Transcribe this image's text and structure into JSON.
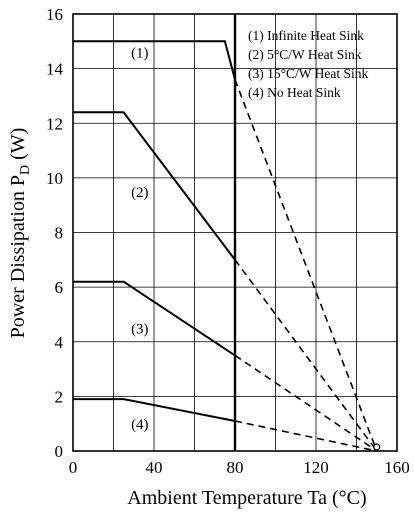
{
  "chart_data": {
    "type": "line",
    "title": "",
    "xlabel": "Ambient Temperature  Ta (°C)",
    "ylabel_main": "Power Dissipation  P",
    "ylabel_sub": "D",
    "ylabel_unit": " (W)",
    "xlim": [
      0,
      160
    ],
    "ylim": [
      0,
      16
    ],
    "x_ticks": [
      0,
      40,
      80,
      120,
      160
    ],
    "y_ticks": [
      0,
      2,
      4,
      6,
      8,
      10,
      12,
      14,
      16
    ],
    "x_grid_step": 20,
    "y_grid_step": 2,
    "grid": true,
    "legend_position": "top-right",
    "boundary_x": 80,
    "converge_point": [
      150,
      0
    ],
    "series": [
      {
        "name": "(1)  Infinite Heat Sink",
        "label": "(1)",
        "label_at": [
          33,
          14.4
        ],
        "solid": [
          [
            0,
            15
          ],
          [
            75,
            15
          ],
          [
            80,
            13.6
          ]
        ],
        "dashed": [
          [
            80,
            13.6
          ],
          [
            150,
            0
          ]
        ]
      },
      {
        "name": "(2)  5°C/W Heat Sink",
        "label": "(2)",
        "label_at": [
          33,
          9.3
        ],
        "solid": [
          [
            0,
            12.4
          ],
          [
            25,
            12.4
          ],
          [
            80,
            7.0
          ]
        ],
        "dashed": [
          [
            80,
            7.0
          ],
          [
            150,
            0
          ]
        ]
      },
      {
        "name": "(3)  15°C/W Heat Sink",
        "label": "(3)",
        "label_at": [
          33,
          4.3
        ],
        "solid": [
          [
            0,
            6.2
          ],
          [
            25,
            6.2
          ],
          [
            80,
            3.5
          ]
        ],
        "dashed": [
          [
            80,
            3.5
          ],
          [
            150,
            0
          ]
        ]
      },
      {
        "name": "(4)  No Heat Sink",
        "label": "(4)",
        "label_at": [
          33,
          0.8
        ],
        "solid": [
          [
            0,
            1.9
          ],
          [
            25,
            1.9
          ],
          [
            80,
            1.1
          ]
        ],
        "dashed": [
          [
            80,
            1.1
          ],
          [
            150,
            0
          ]
        ]
      }
    ]
  }
}
